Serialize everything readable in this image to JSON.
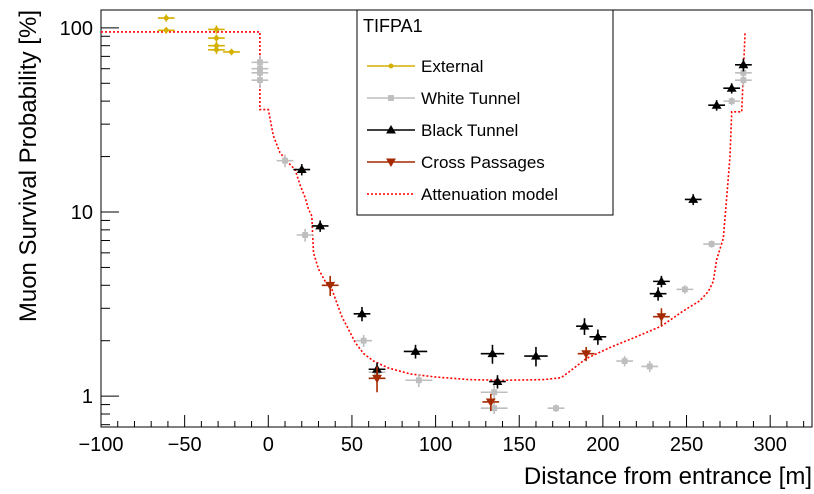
{
  "chart_data": {
    "type": "scatter",
    "title": "",
    "xlabel": "Distance from entrance [m]",
    "ylabel": "Muon Survival Probability [%]",
    "xlim": [
      -100,
      325
    ],
    "ylim": [
      0.68,
      125
    ],
    "yscale": "log",
    "x_ticks": [
      -100,
      -50,
      0,
      50,
      100,
      150,
      200,
      250,
      300
    ],
    "y_ticks": [
      1,
      10,
      100
    ],
    "legend": {
      "title": "TIFPA1",
      "position": "top-center"
    },
    "series": [
      {
        "name": "External",
        "marker": "circle",
        "color": "#d4b000",
        "points": [
          {
            "x": -61,
            "y": 113,
            "xerr": 5,
            "yerr_lo": 5,
            "yerr_hi": 5
          },
          {
            "x": -61,
            "y": 97,
            "xerr": 5,
            "yerr_lo": 4,
            "yerr_hi": 4
          },
          {
            "x": -31,
            "y": 98,
            "xerr": 5,
            "yerr_lo": 5,
            "yerr_hi": 5
          },
          {
            "x": -31,
            "y": 88,
            "xerr": 5,
            "yerr_lo": 4,
            "yerr_hi": 4
          },
          {
            "x": -31,
            "y": 80,
            "xerr": 5,
            "yerr_lo": 4,
            "yerr_hi": 4
          },
          {
            "x": -31,
            "y": 76,
            "xerr": 5,
            "yerr_lo": 4,
            "yerr_hi": 4
          },
          {
            "x": -22,
            "y": 74,
            "xerr": 5,
            "yerr_lo": 3,
            "yerr_hi": 3
          }
        ]
      },
      {
        "name": "White Tunnel",
        "marker": "square",
        "color": "#bebebe",
        "points": [
          {
            "x": -5,
            "y": 65,
            "xerr": 5,
            "yerr_lo": 6,
            "yerr_hi": 6
          },
          {
            "x": -5,
            "y": 60,
            "xerr": 5,
            "yerr_lo": 6,
            "yerr_hi": 6
          },
          {
            "x": -5,
            "y": 57,
            "xerr": 5,
            "yerr_lo": 6,
            "yerr_hi": 6
          },
          {
            "x": -5,
            "y": 52,
            "xerr": 5,
            "yerr_lo": 5,
            "yerr_hi": 5
          },
          {
            "x": 10,
            "y": 19,
            "xerr": 5,
            "yerr_lo": 1.5,
            "yerr_hi": 1.5
          },
          {
            "x": 22,
            "y": 7.5,
            "xerr": 5,
            "yerr_lo": 0.6,
            "yerr_hi": 0.6
          },
          {
            "x": 57,
            "y": 2.0,
            "xerr": 5,
            "yerr_lo": 0.15,
            "yerr_hi": 0.15
          },
          {
            "x": 65,
            "y": 1.35,
            "xerr": 5,
            "yerr_lo": 0.1,
            "yerr_hi": 0.1
          },
          {
            "x": 90,
            "y": 1.22,
            "xerr": 8,
            "yerr_lo": 0.1,
            "yerr_hi": 0.1
          },
          {
            "x": 135,
            "y": 1.05,
            "xerr": 8,
            "yerr_lo": 0.1,
            "yerr_hi": 0.1
          },
          {
            "x": 135,
            "y": 0.86,
            "xerr": 8,
            "yerr_lo": 0.06,
            "yerr_hi": 0.06
          },
          {
            "x": 172,
            "y": 0.86,
            "xerr": 5,
            "yerr_lo": 0.04,
            "yerr_hi": 0.04
          },
          {
            "x": 213,
            "y": 1.55,
            "xerr": 5,
            "yerr_lo": 0.1,
            "yerr_hi": 0.1
          },
          {
            "x": 228,
            "y": 1.45,
            "xerr": 5,
            "yerr_lo": 0.1,
            "yerr_hi": 0.1
          },
          {
            "x": 249,
            "y": 3.8,
            "xerr": 5,
            "yerr_lo": 0.2,
            "yerr_hi": 0.2
          },
          {
            "x": 265,
            "y": 6.7,
            "xerr": 5,
            "yerr_lo": 0.3,
            "yerr_hi": 0.3
          },
          {
            "x": 277,
            "y": 40,
            "xerr": 5,
            "yerr_lo": 2,
            "yerr_hi": 2
          },
          {
            "x": 284,
            "y": 57,
            "xerr": 5,
            "yerr_lo": 5,
            "yerr_hi": 5
          },
          {
            "x": 284,
            "y": 52,
            "xerr": 5,
            "yerr_lo": 4,
            "yerr_hi": 4
          }
        ]
      },
      {
        "name": "Black Tunnel",
        "marker": "triangle-up",
        "color": "#000000",
        "points": [
          {
            "x": 20,
            "y": 17,
            "xerr": 5,
            "yerr_lo": 1.2,
            "yerr_hi": 1.2
          },
          {
            "x": 31,
            "y": 8.4,
            "xerr": 5,
            "yerr_lo": 0.6,
            "yerr_hi": 0.6
          },
          {
            "x": 56,
            "y": 2.8,
            "xerr": 5,
            "yerr_lo": 0.25,
            "yerr_hi": 0.25
          },
          {
            "x": 65,
            "y": 1.4,
            "xerr": 5,
            "yerr_lo": 0.12,
            "yerr_hi": 0.12
          },
          {
            "x": 88,
            "y": 1.75,
            "xerr": 7,
            "yerr_lo": 0.15,
            "yerr_hi": 0.15
          },
          {
            "x": 134,
            "y": 1.7,
            "xerr": 7,
            "yerr_lo": 0.2,
            "yerr_hi": 0.2
          },
          {
            "x": 137,
            "y": 1.2,
            "xerr": 5,
            "yerr_lo": 0.1,
            "yerr_hi": 0.1
          },
          {
            "x": 160,
            "y": 1.65,
            "xerr": 7,
            "yerr_lo": 0.2,
            "yerr_hi": 0.2
          },
          {
            "x": 189,
            "y": 2.4,
            "xerr": 5,
            "yerr_lo": 0.25,
            "yerr_hi": 0.25
          },
          {
            "x": 197,
            "y": 2.1,
            "xerr": 5,
            "yerr_lo": 0.2,
            "yerr_hi": 0.2
          },
          {
            "x": 233,
            "y": 3.6,
            "xerr": 5,
            "yerr_lo": 0.3,
            "yerr_hi": 0.3
          },
          {
            "x": 235,
            "y": 4.2,
            "xerr": 5,
            "yerr_lo": 0.3,
            "yerr_hi": 0.3
          },
          {
            "x": 254,
            "y": 11.7,
            "xerr": 5,
            "yerr_lo": 0.8,
            "yerr_hi": 0.8
          },
          {
            "x": 268,
            "y": 38,
            "xerr": 5,
            "yerr_lo": 2.5,
            "yerr_hi": 2.5
          },
          {
            "x": 277,
            "y": 47,
            "xerr": 5,
            "yerr_lo": 3,
            "yerr_hi": 3
          },
          {
            "x": 284,
            "y": 63,
            "xerr": 5,
            "yerr_lo": 5,
            "yerr_hi": 5
          }
        ]
      },
      {
        "name": "Cross Passages",
        "marker": "triangle-down",
        "color": "#a52a00",
        "points": [
          {
            "x": 37,
            "y": 4.0,
            "xerr": 5,
            "yerr_lo": 0.5,
            "yerr_hi": 0.5
          },
          {
            "x": 65,
            "y": 1.25,
            "xerr": 5,
            "yerr_lo": 0.2,
            "yerr_hi": 0.2
          },
          {
            "x": 133,
            "y": 0.93,
            "xerr": 5,
            "yerr_lo": 0.1,
            "yerr_hi": 0.1
          },
          {
            "x": 190,
            "y": 1.7,
            "xerr": 5,
            "yerr_lo": 0.15,
            "yerr_hi": 0.15
          },
          {
            "x": 235,
            "y": 2.7,
            "xerr": 5,
            "yerr_lo": 0.3,
            "yerr_hi": 0.3
          }
        ]
      }
    ],
    "model": {
      "name": "Attenuation model",
      "color": "#ff0000",
      "style": "dotted",
      "points": [
        [
          -100,
          95
        ],
        [
          -5,
          95
        ],
        [
          -5,
          36
        ],
        [
          0,
          36
        ],
        [
          3,
          26
        ],
        [
          7,
          21
        ],
        [
          12,
          18.5
        ],
        [
          16,
          17
        ],
        [
          19,
          14
        ],
        [
          22,
          12
        ],
        [
          24,
          10.4
        ],
        [
          26,
          9.5
        ],
        [
          27,
          6.0
        ],
        [
          30,
          4.9
        ],
        [
          34,
          4.2
        ],
        [
          38,
          3.8
        ],
        [
          41,
          3.2
        ],
        [
          44,
          2.7
        ],
        [
          48,
          2.3
        ],
        [
          52,
          1.95
        ],
        [
          57,
          1.7
        ],
        [
          63,
          1.55
        ],
        [
          72,
          1.42
        ],
        [
          85,
          1.32
        ],
        [
          100,
          1.27
        ],
        [
          120,
          1.23
        ],
        [
          140,
          1.22
        ],
        [
          165,
          1.23
        ],
        [
          175,
          1.26
        ],
        [
          180,
          1.36
        ],
        [
          190,
          1.6
        ],
        [
          205,
          1.85
        ],
        [
          220,
          2.1
        ],
        [
          235,
          2.4
        ],
        [
          248,
          2.9
        ],
        [
          258,
          3.3
        ],
        [
          263,
          3.7
        ],
        [
          266,
          4.2
        ],
        [
          268,
          5.5
        ],
        [
          272,
          7.2
        ],
        [
          274,
          12
        ],
        [
          276,
          20
        ],
        [
          277,
          35
        ],
        [
          283,
          35
        ],
        [
          285,
          95
        ]
      ]
    }
  }
}
